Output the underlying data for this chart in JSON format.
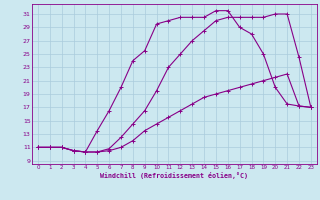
{
  "xlabel": "Windchill (Refroidissement éolien,°C)",
  "background_color": "#cce8f0",
  "grid_color": "#aaccdd",
  "line_color": "#880088",
  "x_ticks": [
    0,
    1,
    2,
    3,
    4,
    5,
    6,
    7,
    8,
    9,
    10,
    11,
    12,
    13,
    14,
    15,
    16,
    17,
    18,
    19,
    20,
    21,
    22,
    23
  ],
  "y_ticks": [
    9,
    11,
    13,
    15,
    17,
    19,
    21,
    23,
    25,
    27,
    29,
    31
  ],
  "xlim": [
    -0.5,
    23.5
  ],
  "ylim": [
    8.5,
    32.5
  ],
  "curve1_x": [
    0,
    1,
    2,
    3,
    4,
    5,
    6,
    7,
    8,
    9,
    10,
    11,
    12,
    13,
    14,
    15,
    16,
    17,
    18,
    19,
    20,
    21,
    22,
    23
  ],
  "curve1_y": [
    11.0,
    11.0,
    11.0,
    10.5,
    10.3,
    10.3,
    10.5,
    11.0,
    12.0,
    13.5,
    14.5,
    15.5,
    16.5,
    17.5,
    18.5,
    19.0,
    19.5,
    20.0,
    20.5,
    21.0,
    21.5,
    22.0,
    17.2,
    17.0
  ],
  "curve2_x": [
    0,
    1,
    2,
    3,
    4,
    5,
    6,
    7,
    8,
    9,
    10,
    11,
    12,
    13,
    14,
    15,
    16,
    17,
    18,
    19,
    20,
    21,
    22,
    23
  ],
  "curve2_y": [
    11.0,
    11.0,
    11.0,
    10.5,
    10.3,
    10.3,
    10.8,
    12.5,
    14.5,
    16.5,
    19.5,
    23.0,
    25.0,
    27.0,
    28.5,
    30.0,
    30.5,
    30.5,
    30.5,
    30.5,
    31.0,
    31.0,
    24.5,
    17.0
  ],
  "curve3_x": [
    0,
    1,
    2,
    3,
    4,
    5,
    6,
    7,
    8,
    9,
    10,
    11,
    12,
    13,
    14,
    15,
    16,
    17,
    18,
    19,
    20,
    21,
    22,
    23
  ],
  "curve3_y": [
    11.0,
    11.0,
    11.0,
    10.5,
    10.3,
    13.5,
    16.5,
    20.0,
    24.0,
    25.5,
    29.5,
    30.0,
    30.5,
    30.5,
    30.5,
    31.5,
    31.5,
    29.0,
    28.0,
    25.0,
    20.0,
    17.5,
    17.2,
    17.0
  ]
}
